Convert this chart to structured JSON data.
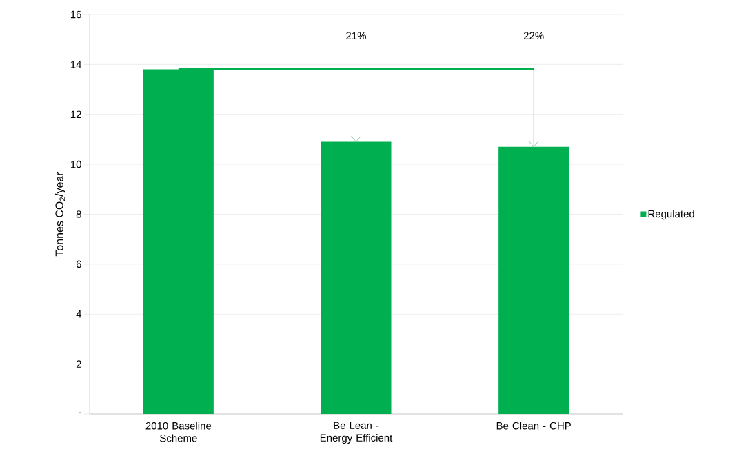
{
  "chart_data": {
    "type": "bar",
    "ylabel": "Tonnes CO$_{2}$/year",
    "categories": [
      "2010 Baseline Scheme",
      "Be Lean - Energy Efficient",
      "Be Clean - CHP"
    ],
    "series": [
      {
        "name": "Regulated",
        "color": "#00b050",
        "values": [
          13.8,
          10.9,
          10.7
        ]
      }
    ],
    "ylim": [
      0,
      16
    ],
    "yticks": [
      {
        "value": 0,
        "label": "-"
      },
      2,
      4,
      6,
      8,
      10,
      12,
      14,
      16
    ],
    "grid": "y",
    "legend": "right",
    "ref_lines": [
      {
        "axis": "y",
        "value": 13.8,
        "color": "#00b050"
      }
    ],
    "annotations": [
      "21%",
      "22%"
    ]
  }
}
